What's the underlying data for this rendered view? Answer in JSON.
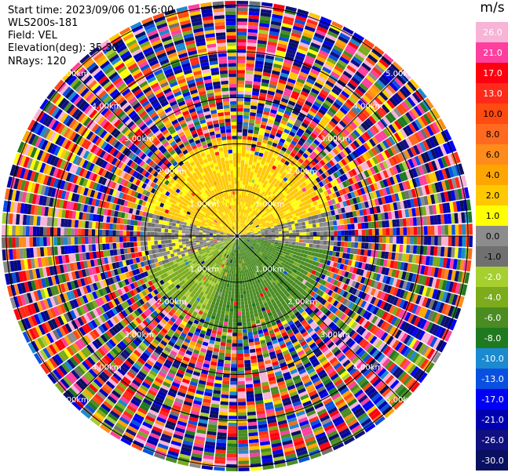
{
  "header": {
    "start_time": "Start time: 2023/09/06 01:56:00",
    "instrument": "WLS200s-181",
    "field": "Field: VEL",
    "elevation": "Elevation(deg): 35.30",
    "nrays": "NRays: 120"
  },
  "chart_data": {
    "type": "heatmap",
    "projection": "polar PPI (plan position indicator)",
    "field": "VEL",
    "units": "m/s",
    "n_rays": 120,
    "max_range_km": 5.1,
    "range_rings_km": [
      1.0,
      2.0,
      3.0,
      4.0,
      5.0
    ],
    "ring_labels": [
      "1.00km",
      "2.00km",
      "3.00km",
      "4.00km",
      "5.00km"
    ],
    "spokes_deg": [
      0,
      45,
      90,
      135,
      180,
      225,
      270,
      315
    ],
    "colorbar": {
      "unit_label": "m/s",
      "tick_labels": [
        "26.0",
        "21.0",
        "17.0",
        "13.0",
        "10.0",
        "8.0",
        "6.0",
        "4.0",
        "2.0",
        "1.0",
        "0.0",
        "-1.0",
        "-2.0",
        "-4.0",
        "-6.0",
        "-8.0",
        "-10.0",
        "-13.0",
        "-17.0",
        "-21.0",
        "-26.0",
        "-30.0"
      ],
      "bins": [
        {
          "from": 26,
          "to": 30,
          "color": "#f7b4d6"
        },
        {
          "from": 21,
          "to": 26,
          "color": "#ff3f9e"
        },
        {
          "from": 17,
          "to": 21,
          "color": "#ff0010"
        },
        {
          "from": 13,
          "to": 17,
          "color": "#ff2a1a"
        },
        {
          "from": 10,
          "to": 13,
          "color": "#ff4a10"
        },
        {
          "from": 8,
          "to": 10,
          "color": "#ff6a20"
        },
        {
          "from": 6,
          "to": 8,
          "color": "#ff8c1a"
        },
        {
          "from": 4,
          "to": 6,
          "color": "#ffa500"
        },
        {
          "from": 2,
          "to": 4,
          "color": "#ffc800"
        },
        {
          "from": 1,
          "to": 2,
          "color": "#ffff00"
        },
        {
          "from": 0,
          "to": 1,
          "color": "#8c8c8c"
        },
        {
          "from": -1,
          "to": 0,
          "color": "#707070"
        },
        {
          "from": -2,
          "to": -1,
          "color": "#a6cf30"
        },
        {
          "from": -4,
          "to": -2,
          "color": "#7cab1c"
        },
        {
          "from": -6,
          "to": -4,
          "color": "#4a8c22"
        },
        {
          "from": -8,
          "to": -6,
          "color": "#1f7a1f"
        },
        {
          "from": -10,
          "to": -8,
          "color": "#1b8ad0"
        },
        {
          "from": -13,
          "to": -10,
          "color": "#0a50e0"
        },
        {
          "from": -17,
          "to": -13,
          "color": "#0000f5"
        },
        {
          "from": -21,
          "to": -17,
          "color": "#0000b0"
        },
        {
          "from": -26,
          "to": -21,
          "color": "#101080"
        },
        {
          "from": -30,
          "to": -26,
          "color": "#0a1060"
        }
      ]
    },
    "coherent_region_km": 2.1,
    "dominant_velocity_by_sector": [
      {
        "from_deg": 285,
        "to_deg": 75,
        "velocity_ms": 2.5
      },
      {
        "from_deg": 75,
        "to_deg": 100,
        "velocity_ms": 0.3
      },
      {
        "from_deg": 100,
        "to_deg": 200,
        "velocity_ms": -5.0
      },
      {
        "from_deg": 200,
        "to_deg": 250,
        "velocity_ms": -2.5
      },
      {
        "from_deg": 250,
        "to_deg": 285,
        "velocity_ms": 0.3
      }
    ],
    "outer_region": "noise (random velocities across the full colour scale)"
  }
}
